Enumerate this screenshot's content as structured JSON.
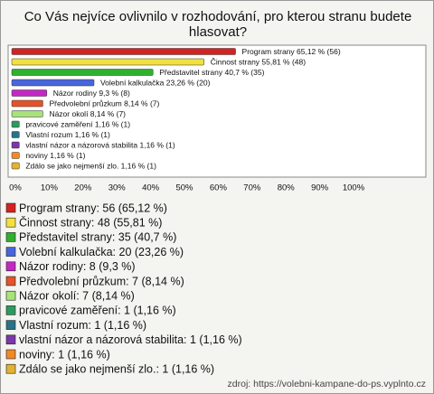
{
  "title": "Co Vás nejvíce ovlivnilo v rozhodování, pro kterou stranu budete hlasovat?",
  "source": "zdroj: https://volebni-kampane-do-ps.vyplnto.cz",
  "chart_data": {
    "type": "bar",
    "orientation": "horizontal",
    "categories": [
      "Program strany",
      "Činnost strany",
      "Představitel strany",
      "Volební kalkulačka",
      "Názor rodiny",
      "Předvolební průzkum",
      "Názor okolí",
      "pravicové zaměření",
      "Vlastní rozum",
      "vlastní názor a názorová stabilita",
      "noviny",
      "Zdálo se jako nejmenší zlo."
    ],
    "values": [
      65.12,
      55.81,
      40.7,
      23.26,
      9.3,
      8.14,
      8.14,
      1.16,
      1.16,
      1.16,
      1.16,
      1.16
    ],
    "value_labels": [
      "Program strany 65,12 % (56)",
      "Činnost strany 55,81 % (48)",
      "Představitel strany 40,7 % (35)",
      "Volební kalkulačka 23,26 % (20)",
      "Názor rodiny 9,3 % (8)",
      "Předvolební průzkum 8,14 % (7)",
      "Názor okolí 8,14 % (7)",
      "pravicové zaměření 1,16 % (1)",
      "Vlastní rozum 1,16 % (1)",
      "vlastní názor a názorová stabilita 1,16 % (1)",
      "noviny 1,16 % (1)",
      "Zdálo se jako nejmenší zlo. 1,16 % (1)"
    ],
    "legend_labels": [
      "Program strany: 56 (65,12 %)",
      "Činnost strany: 48 (55,81 %)",
      "Představitel strany: 35 (40,7 %)",
      "Volební kalkulačka: 20 (23,26 %)",
      "Názor rodiny: 8 (9,3 %)",
      "Předvolební průzkum: 7 (8,14 %)",
      "Názor okolí: 7 (8,14 %)",
      "pravicové zaměření: 1 (1,16 %)",
      "Vlastní rozum: 1 (1,16 %)",
      "vlastní názor a názorová stabilita: 1 (1,16 %)",
      "noviny: 1 (1,16 %)",
      "Zdálo se jako nejmenší zlo.: 1 (1,16 %)"
    ],
    "colors": [
      "#d42222",
      "#f2e040",
      "#2fb02f",
      "#4866dc",
      "#c428c4",
      "#e2542a",
      "#a8e27a",
      "#2e9a5e",
      "#2a7288",
      "#7a38a8",
      "#f08a28",
      "#e2b234"
    ],
    "xlim": [
      0,
      100
    ],
    "xticks": [
      {
        "value": 0,
        "label": "0%"
      },
      {
        "value": 10,
        "label": "10%"
      },
      {
        "value": 20,
        "label": "20%"
      },
      {
        "value": 30,
        "label": "30%"
      },
      {
        "value": 40,
        "label": "40%"
      },
      {
        "value": 50,
        "label": "50%"
      },
      {
        "value": 60,
        "label": "60%"
      },
      {
        "value": 70,
        "label": "70%"
      },
      {
        "value": 80,
        "label": "80%"
      },
      {
        "value": 90,
        "label": "90%"
      },
      {
        "value": 100,
        "label": "100%"
      }
    ]
  }
}
